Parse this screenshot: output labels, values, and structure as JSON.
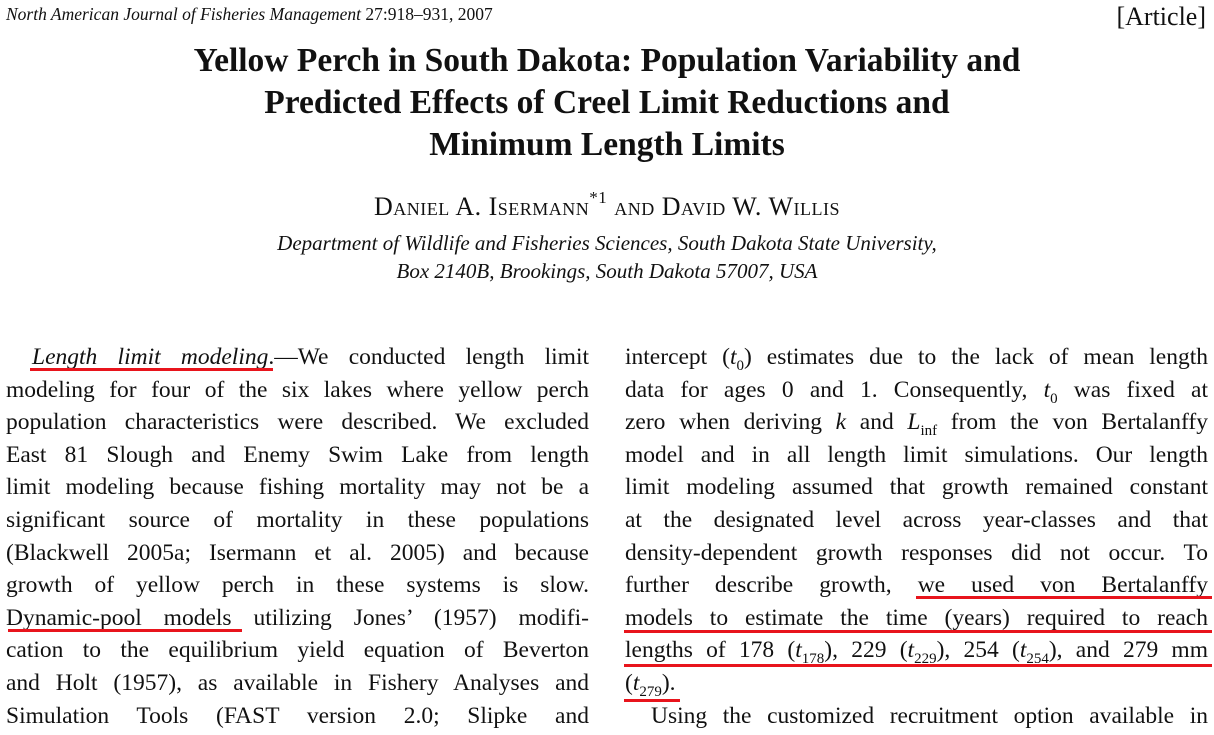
{
  "header": {
    "journal": "North American Journal of Fisheries Management",
    "volume_pages": "27:918–931, 2007",
    "article_tag": "[Article]"
  },
  "title_lines": [
    "Yellow Perch in South Dakota: Population Variability and",
    "Predicted Effects of Creel Limit Reductions and",
    "Minimum Length Limits"
  ],
  "authors": {
    "first": "Daniel A. Isermann",
    "first_mark": "*1",
    "and": "and",
    "second": "David W. Willis"
  },
  "affiliation_lines": [
    "Department of Wildlife and Fisheries Sciences, South Dakota State University,",
    "Box 2140B, Brookings, South Dakota 57007, USA"
  ],
  "left_column": {
    "heading": "Length limit modeling",
    "heading_tail": ".—We conducted length limit",
    "lines": [
      "modeling for four of the six lakes where yellow perch",
      "population characteristics were described. We excluded",
      "East 81 Slough and Enemy Swim Lake from length",
      "limit modeling because fishing mortality may not be a",
      "significant source of mortality in these populations",
      "(Blackwell 2005a; Isermann et al. 2005) and because",
      "growth of yellow perch in these systems is slow."
    ],
    "dp_phrase": "Dynamic-pool models",
    "dp_tail": " utilizing Jones’ (1957) modifi-",
    "lines2": [
      "cation to the equilibrium yield equation of Beverton",
      "and Holt (1957), as available in Fishery Analyses and",
      "Simulation Tools (FAST version 2.0; Slipke and"
    ]
  },
  "right_column": {
    "l1a": "intercept (",
    "t0": "t",
    "sub0": "0",
    "l1b": ") estimates due to the lack of mean length",
    "l2a": "data for ages 0 and 1. Consequently, ",
    "l2b": " was fixed at",
    "l3a": "zero when deriving ",
    "k": "k",
    "l3b": " and ",
    "L": "L",
    "inf": "inf",
    "l3c": " from the von Bertalanffy",
    "lines": [
      "model and in all length limit simulations. Our length",
      "limit modeling assumed that growth remained constant",
      "at the designated level across year-classes and that",
      "density-dependent growth responses did not occur. To"
    ],
    "l8a": "further describe growth, ",
    "l8b": "we used von Bertalanffy",
    "l9": "models to estimate the time (years) required to reach",
    "l10a": "lengths of 178 (",
    "s178": "178",
    "l10b": "), 229 (",
    "s229": "229",
    "l10c": "), 254 (",
    "s254": "254",
    "l10d": "), and 279 mm",
    "l11a": "(",
    "s279": "279",
    "l11b": ").",
    "l12": "Using the customized recruitment option available in"
  },
  "colors": {
    "highlight": "#e8141c"
  }
}
